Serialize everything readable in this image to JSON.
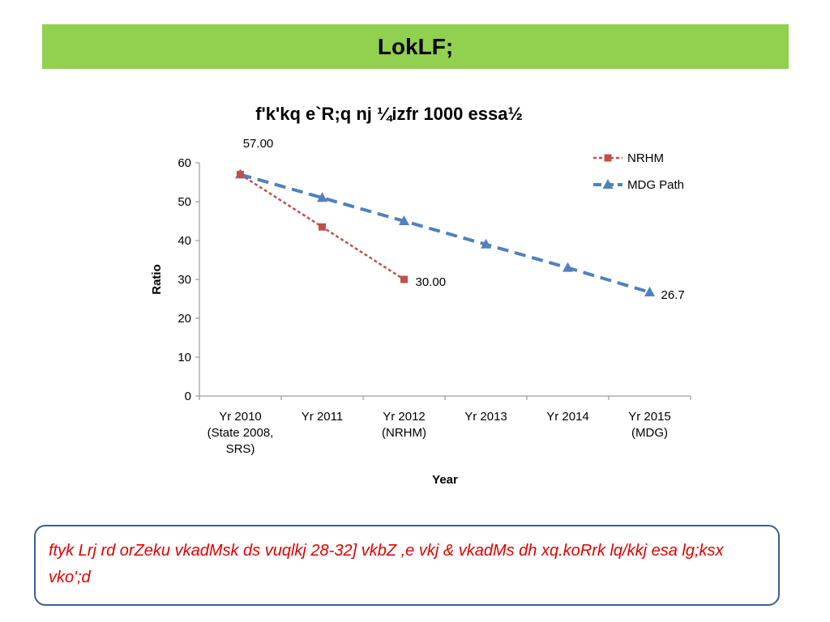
{
  "header": {
    "title": "LokLF;"
  },
  "note": {
    "text": "ftyk Lrj rd orZeku vkadMsk ds vuqlkj 28-32] vkbZ ,e vkj & vkadMs dh xq.koRrk lq/kkj esa lg;ksx vko';d"
  },
  "chart_data": {
    "type": "line",
    "title": "f'k'kq e`R;q nj ¼izfr 1000 essa½",
    "xlabel": "Year",
    "ylabel": "Ratio",
    "ylim": [
      0,
      60
    ],
    "yticks": [
      "0",
      "10",
      "20",
      "30",
      "40",
      "50",
      "60"
    ],
    "categories": [
      [
        "Yr 2010",
        "(State 2008,",
        "SRS)"
      ],
      [
        "Yr 2011"
      ],
      [
        "Yr 2012",
        "(NRHM)"
      ],
      [
        "Yr 2013"
      ],
      [
        "Yr 2014"
      ],
      [
        "Yr 2015",
        "(MDG)"
      ]
    ],
    "legend_position": "top-right",
    "grid": false,
    "series": [
      {
        "name": "NRHM",
        "color": "#c0504d",
        "marker": "square",
        "values": [
          57,
          43.5,
          30,
          null,
          null,
          null
        ],
        "labels": [
          "57.00",
          null,
          "30.00",
          null,
          null,
          null
        ]
      },
      {
        "name": "MDG Path",
        "color": "#4f81bd",
        "marker": "triangle",
        "values": [
          57,
          51,
          45,
          39,
          33,
          26.7
        ],
        "labels": [
          null,
          null,
          null,
          null,
          null,
          "26.7"
        ]
      }
    ]
  }
}
